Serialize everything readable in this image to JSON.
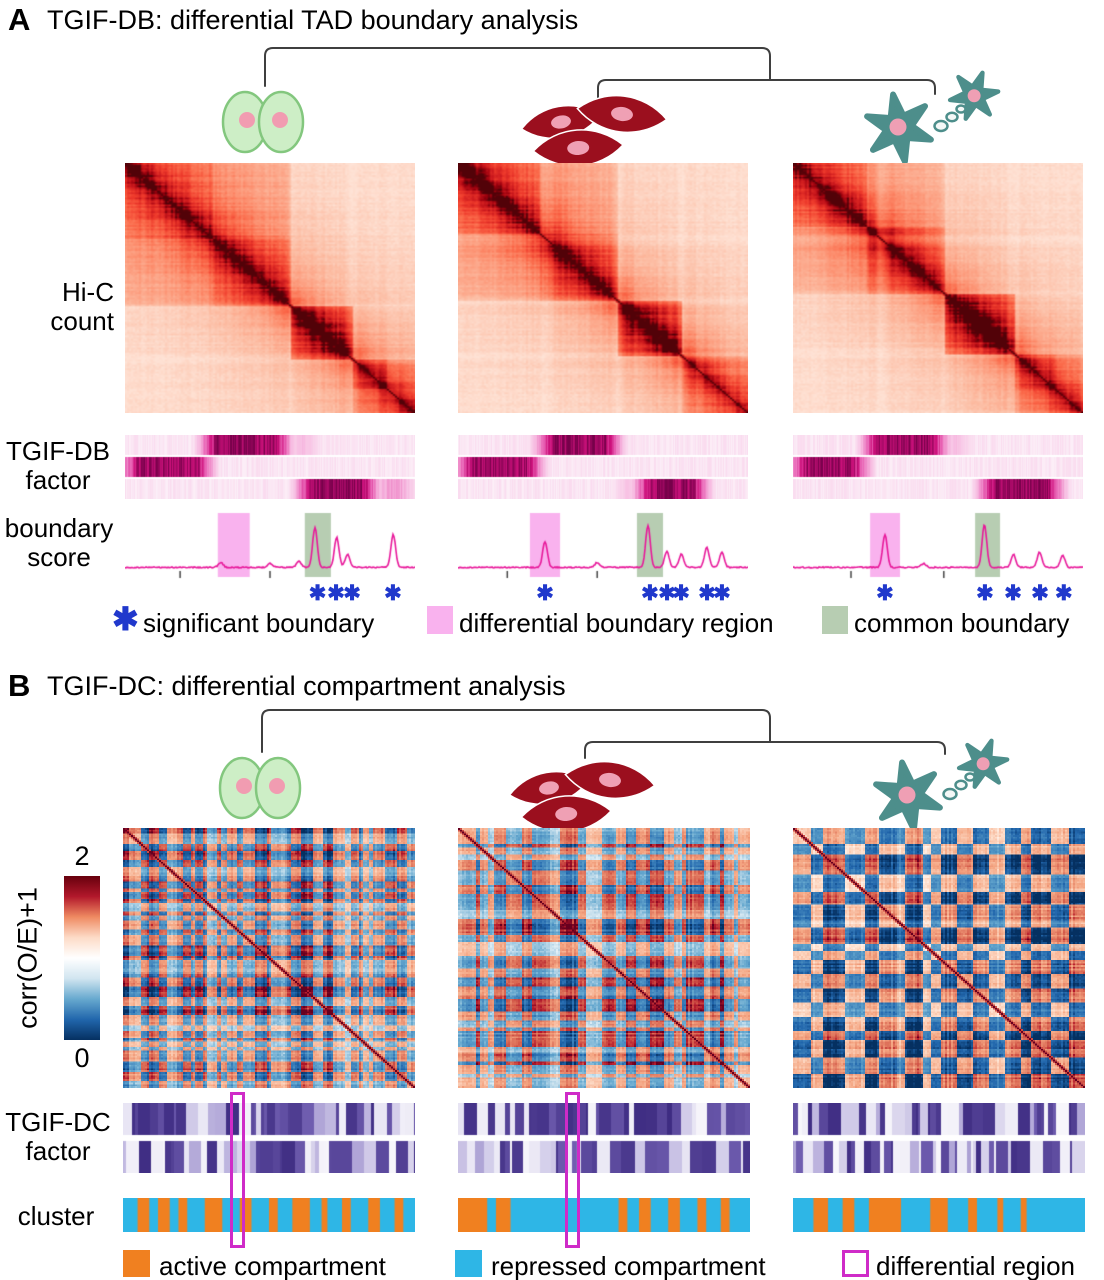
{
  "panelA": {
    "tag": "A",
    "title": "TGIF-DB: differential TAD boundary analysis",
    "row_labels": {
      "hic": "Hi-C\ncount",
      "factor": "TGIF-DB\nfactor",
      "score": "boundary\nscore"
    },
    "asterisk_symbol": "✱",
    "score_line_color": "#e8189a",
    "legend": [
      {
        "symbol": "✱",
        "label": "significant boundary",
        "color": "#2038cc"
      },
      {
        "label": "differential boundary region",
        "color": "#f9b2ee"
      },
      {
        "label": "common boundary",
        "color": "#b7cdb2"
      }
    ],
    "samples": [
      {
        "cell_type": "epithelial-cell-pair",
        "hic": {
          "seed": 101,
          "tads": [
            [
              0,
              0.57,
              0.2
            ],
            [
              0,
              0.3,
              0.09
            ],
            [
              0.3,
              0.57,
              0.09
            ],
            [
              0.57,
              0.78,
              0.36
            ],
            [
              0.78,
              1,
              0.14
            ],
            [
              0.78,
              0.9,
              0.08
            ]
          ],
          "bounds": [
            0.57,
            0.78
          ]
        },
        "factor": {
          "seed": 201,
          "rows": [
            [
              [
                0.27,
                0.56,
                0.95
              ],
              [
                0.56,
                0.66,
                0.3
              ]
            ],
            [
              [
                0,
                0.29,
                0.92
              ]
            ],
            [
              [
                0.6,
                0.86,
                0.95
              ],
              [
                0.86,
                0.99,
                0.4
              ]
            ]
          ]
        },
        "score": {
          "pink": [
            0.32,
            0.43
          ],
          "green": [
            0.62,
            0.71
          ],
          "ticks": [
            0.19,
            0.5
          ],
          "peaks": [
            [
              0.655,
              40
            ],
            [
              0.73,
              30
            ],
            [
              0.767,
              13
            ],
            [
              0.925,
              33
            ],
            [
              0.33,
              5
            ],
            [
              0.5,
              4
            ],
            [
              0.6,
              6
            ]
          ]
        },
        "asterisks": [
          0.664,
          0.728,
          0.783,
          0.924
        ]
      },
      {
        "cell_type": "fibroblast-cells",
        "hic": {
          "seed": 102,
          "tads": [
            [
              0,
              0.55,
              0.16
            ],
            [
              0,
              0.28,
              0.13
            ],
            [
              0.28,
              0.55,
              0.13
            ],
            [
              0.55,
              0.77,
              0.36
            ],
            [
              0.77,
              1,
              0.14
            ]
          ],
          "bounds": [
            0.3,
            0.55,
            0.77
          ]
        },
        "factor": {
          "seed": 202,
          "rows": [
            [
              [
                0.28,
                0.55,
                0.95
              ]
            ],
            [
              [
                0,
                0.28,
                0.92
              ]
            ],
            [
              [
                0.55,
                0.62,
                0.3
              ],
              [
                0.62,
                0.85,
                0.95
              ]
            ]
          ]
        },
        "score": {
          "pink": [
            0.248,
            0.352
          ],
          "green": [
            0.617,
            0.707
          ],
          "ticks": [
            0.17,
            0.48
          ],
          "peaks": [
            [
              0.3,
              26
            ],
            [
              0.655,
              42
            ],
            [
              0.72,
              16
            ],
            [
              0.77,
              13
            ],
            [
              0.858,
              20
            ],
            [
              0.91,
              15
            ],
            [
              0.48,
              5
            ]
          ]
        },
        "asterisks": [
          0.3,
          0.662,
          0.721,
          0.769,
          0.859,
          0.91
        ]
      },
      {
        "cell_type": "neural-cells",
        "hic": {
          "seed": 103,
          "tads": [
            [
              0,
              0.52,
              0.16
            ],
            [
              0,
              0.25,
              0.13
            ],
            [
              0.25,
              0.52,
              0.13
            ],
            [
              0.52,
              0.76,
              0.36
            ],
            [
              0.76,
              1,
              0.14
            ],
            [
              0.76,
              0.9,
              0.08
            ]
          ],
          "bounds": [
            0.3,
            0.52,
            0.76
          ]
        },
        "factor": {
          "seed": 203,
          "rows": [
            [
              [
                0.25,
                0.52,
                0.95
              ],
              [
                0.52,
                0.6,
                0.3
              ]
            ],
            [
              [
                0,
                0.25,
                0.92
              ]
            ],
            [
              [
                0.65,
                0.92,
                0.95
              ]
            ]
          ]
        },
        "score": {
          "pink": [
            0.266,
            0.369
          ],
          "green": [
            0.628,
            0.714
          ],
          "ticks": [
            0.2,
            0.52
          ],
          "peaks": [
            [
              0.317,
              33
            ],
            [
              0.66,
              43
            ],
            [
              0.76,
              13
            ],
            [
              0.85,
              15
            ],
            [
              0.93,
              12
            ],
            [
              0.45,
              4
            ]
          ]
        },
        "asterisks": [
          0.317,
          0.662,
          0.759,
          0.852,
          0.934
        ]
      }
    ]
  },
  "panelB": {
    "tag": "B",
    "title": "TGIF-DC: differential compartment analysis",
    "row_labels": {
      "factor": "TGIF-DC\nfactor",
      "cluster": "cluster"
    },
    "colorbar": {
      "label": "corr(O/E)+1",
      "top_tick": "2",
      "bottom_tick": "0",
      "stops": [
        "#67000d",
        "#b2182b",
        "#ef8a62",
        "#fddbc7",
        "#ffffff",
        "#d1e5f0",
        "#67a9cf",
        "#2166ac",
        "#053061"
      ]
    },
    "legend": [
      {
        "label": "active compartment",
        "color": "#f08020",
        "outline": false
      },
      {
        "label": "repressed compartment",
        "color": "#2eb6e6",
        "outline": false
      },
      {
        "label": "differential region",
        "color": "#cf2bc8",
        "outline": true
      }
    ],
    "samples": [
      {
        "cell_type": "epithelial-cell-pair",
        "corr": {
          "seed": 301,
          "maxLen": 5,
          "bias": 0.0
        },
        "factor": {
          "seed": 401,
          "rows": [
            0.62,
            0.38
          ]
        },
        "cluster": {
          "orange": [
            [
              0.05,
              0.09
            ],
            [
              0.12,
              0.16
            ],
            [
              0.19,
              0.22
            ],
            [
              0.28,
              0.34
            ],
            [
              0.4,
              0.44
            ],
            [
              0.5,
              0.53
            ],
            [
              0.58,
              0.64
            ],
            [
              0.68,
              0.7
            ],
            [
              0.75,
              0.78
            ],
            [
              0.84,
              0.88
            ],
            [
              0.93,
              0.96
            ]
          ]
        },
        "diff_center": 0.392
      },
      {
        "cell_type": "fibroblast-cells",
        "corr": {
          "seed": 302,
          "maxLen": 8,
          "bias": 0.04
        },
        "factor": {
          "seed": 402,
          "rows": [
            0.7,
            0.45
          ]
        },
        "cluster": {
          "orange": [
            [
              0.0,
              0.1
            ],
            [
              0.13,
              0.18
            ],
            [
              0.55,
              0.58
            ],
            [
              0.62,
              0.66
            ],
            [
              0.72,
              0.76
            ],
            [
              0.82,
              0.85
            ],
            [
              0.9,
              0.93
            ]
          ]
        },
        "diff_center": 0.392
      },
      {
        "cell_type": "neural-cells",
        "corr": {
          "seed": 303,
          "maxLen": 9,
          "bias": -0.16
        },
        "factor": {
          "seed": 403,
          "rows": [
            0.55,
            0.4
          ]
        },
        "cluster": {
          "orange": [
            [
              0.07,
              0.12
            ],
            [
              0.17,
              0.21
            ],
            [
              0.26,
              0.37
            ],
            [
              0.47,
              0.53
            ],
            [
              0.6,
              0.63
            ],
            [
              0.7,
              0.72
            ],
            [
              0.78,
              0.8
            ]
          ]
        },
        "diff_center": null
      }
    ]
  }
}
